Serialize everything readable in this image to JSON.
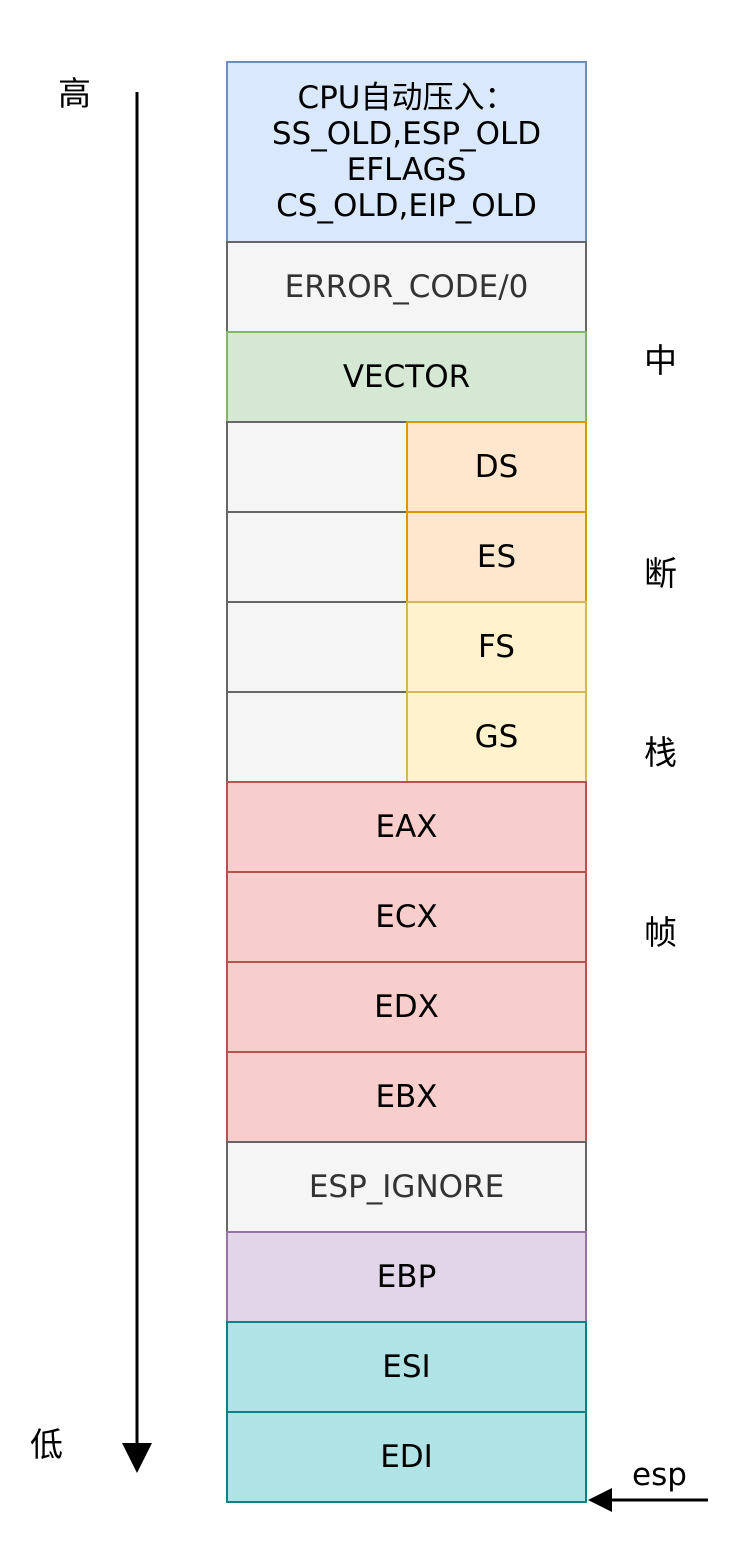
{
  "labels": {
    "high": "高",
    "low": "低",
    "esp": "esp"
  },
  "side_title": [
    "中",
    "断",
    "栈",
    "帧"
  ],
  "stack": {
    "cpu_push": {
      "lines": [
        "CPU自动压入：",
        "SS_OLD,ESP_OLD",
        "EFLAGS",
        "CS_OLD,EIP_OLD"
      ]
    },
    "error_code": "ERROR_CODE/0",
    "vector": "VECTOR",
    "segments": [
      "DS",
      "ES",
      "FS",
      "GS"
    ],
    "eax": "EAX",
    "ecx": "ECX",
    "edx": "EDX",
    "ebx": "EBX",
    "esp_ignore": "ESP_IGNORE",
    "ebp": "EBP",
    "esi": "ESI",
    "edi": "EDI"
  },
  "colors": {
    "blue": "#dae8fc",
    "gray": "#f5f5f5",
    "green": "#d5e8d4",
    "orange": "#ffe6cc",
    "yellow": "#fff2cc",
    "red": "#f8cecc",
    "purple": "#e1d5e7",
    "teal": "#b0e3e6"
  }
}
